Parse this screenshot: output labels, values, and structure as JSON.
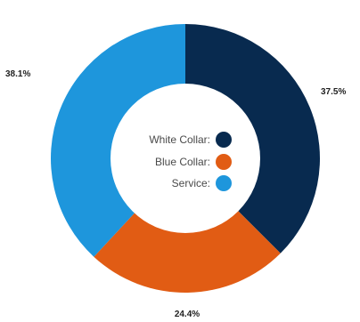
{
  "chart_data": {
    "type": "pie",
    "donut": true,
    "categories": [
      "White Collar",
      "Blue Collar",
      "Service"
    ],
    "values": [
      37.5,
      24.4,
      38.1
    ],
    "value_labels": [
      "37.5%",
      "24.4%",
      "38.1%"
    ],
    "legend_labels": [
      "White Collar:",
      "Blue Collar:",
      "Service:"
    ],
    "colors": [
      "#082a4f",
      "#e15c14",
      "#1e96dc"
    ],
    "legend_position": "center",
    "title": ""
  }
}
